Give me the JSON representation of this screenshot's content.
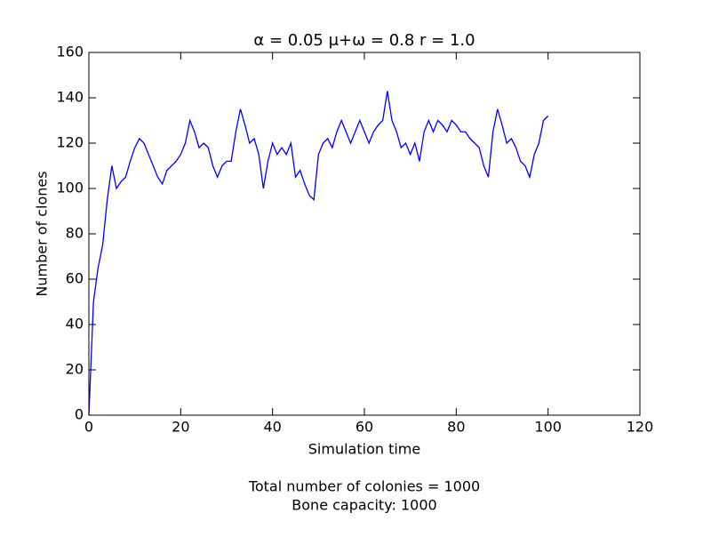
{
  "chart_data": {
    "type": "line",
    "title": "α = 0.05 μ+ω = 0.8 r = 1.0",
    "x_label": "Simulation time",
    "y_label": "Number of clones",
    "annotations": [
      "Total number of colonies = 1000",
      "Bone capacity: 1000"
    ],
    "x": [
      0,
      1,
      2,
      3,
      4,
      5,
      6,
      7,
      8,
      9,
      10,
      11,
      12,
      13,
      14,
      15,
      16,
      17,
      18,
      19,
      20,
      21,
      22,
      23,
      24,
      25,
      26,
      27,
      28,
      29,
      30,
      31,
      32,
      33,
      34,
      35,
      36,
      37,
      38,
      39,
      40,
      41,
      42,
      43,
      44,
      45,
      46,
      47,
      48,
      49,
      50,
      51,
      52,
      53,
      54,
      55,
      56,
      57,
      58,
      59,
      60,
      61,
      62,
      63,
      64,
      65,
      66,
      67,
      68,
      69,
      70,
      71,
      72,
      73,
      74,
      75,
      76,
      77,
      78,
      79,
      80,
      81,
      82,
      83,
      84,
      85,
      86,
      87,
      88,
      89,
      90,
      91,
      92,
      93,
      94,
      95,
      96,
      97,
      98,
      99,
      100
    ],
    "series": [
      {
        "color": "#0000ff",
        "values": [
          0,
          50,
          65,
          75,
          95,
          110,
          100,
          103,
          105,
          112,
          118,
          122,
          120,
          115,
          110,
          105,
          102,
          108,
          110,
          112,
          115,
          120,
          130,
          125,
          118,
          120,
          118,
          110,
          105,
          110,
          112,
          112,
          125,
          135,
          128,
          120,
          122,
          115,
          100,
          112,
          120,
          115,
          118,
          115,
          120,
          105,
          108,
          102,
          97,
          95,
          115,
          120,
          122,
          118,
          125,
          130,
          125,
          120,
          125,
          130,
          125,
          120,
          125,
          128,
          130,
          143,
          130,
          125,
          118,
          120,
          115,
          120,
          112,
          125,
          130,
          125,
          130,
          128,
          125,
          130,
          128,
          125,
          125,
          122,
          120,
          118,
          110,
          105,
          125,
          135,
          128,
          120,
          122,
          118,
          112,
          110,
          105,
          115,
          120,
          130,
          132
        ]
      }
    ],
    "xlim": [
      0,
      120
    ],
    "xticks": [
      0,
      20,
      40,
      60,
      80,
      100,
      120
    ],
    "ylim": [
      0,
      160
    ],
    "yticks": [
      0,
      20,
      40,
      60,
      80,
      100,
      120,
      140,
      160
    ],
    "grid": false
  }
}
